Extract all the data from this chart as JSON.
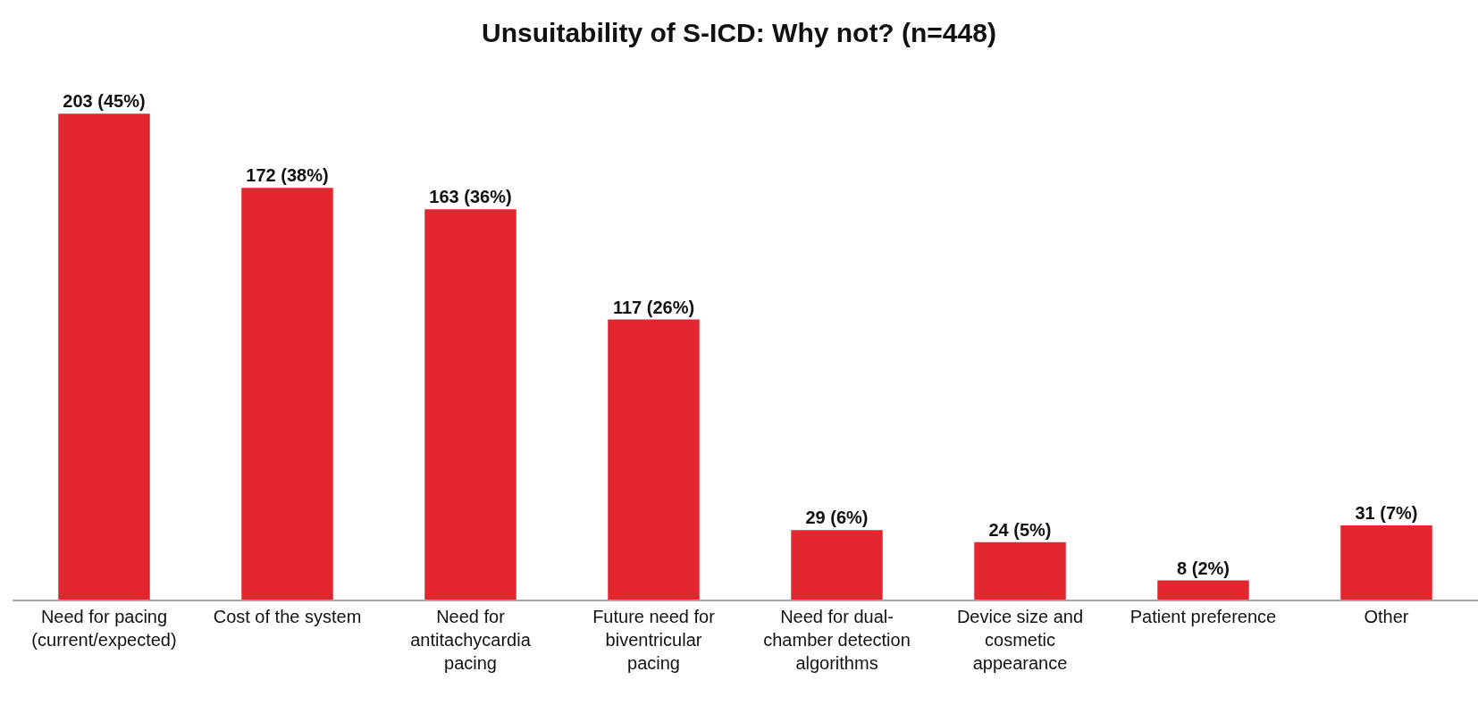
{
  "chart_data": {
    "type": "bar",
    "title": "Unsuitability of S-ICD: Why not? (n=448)",
    "categories": [
      "Need for pacing (current/expected)",
      "Cost of the system",
      "Need for antitachycardia pacing",
      "Future need for biventricular pacing",
      "Need for dual-chamber detection algorithms",
      "Device size and cosmetic appearance",
      "Patient preference",
      "Other"
    ],
    "values": [
      203,
      172,
      163,
      117,
      29,
      24,
      8,
      31
    ],
    "value_labels": [
      "203 (45%)",
      "172 (38%)",
      "163 (36%)",
      "117 (26%)",
      "29 (6%)",
      "24 (5%)",
      "8 (2%)",
      "31 (7%)"
    ],
    "color": "#e1262e",
    "tick_labels": "x"
  }
}
